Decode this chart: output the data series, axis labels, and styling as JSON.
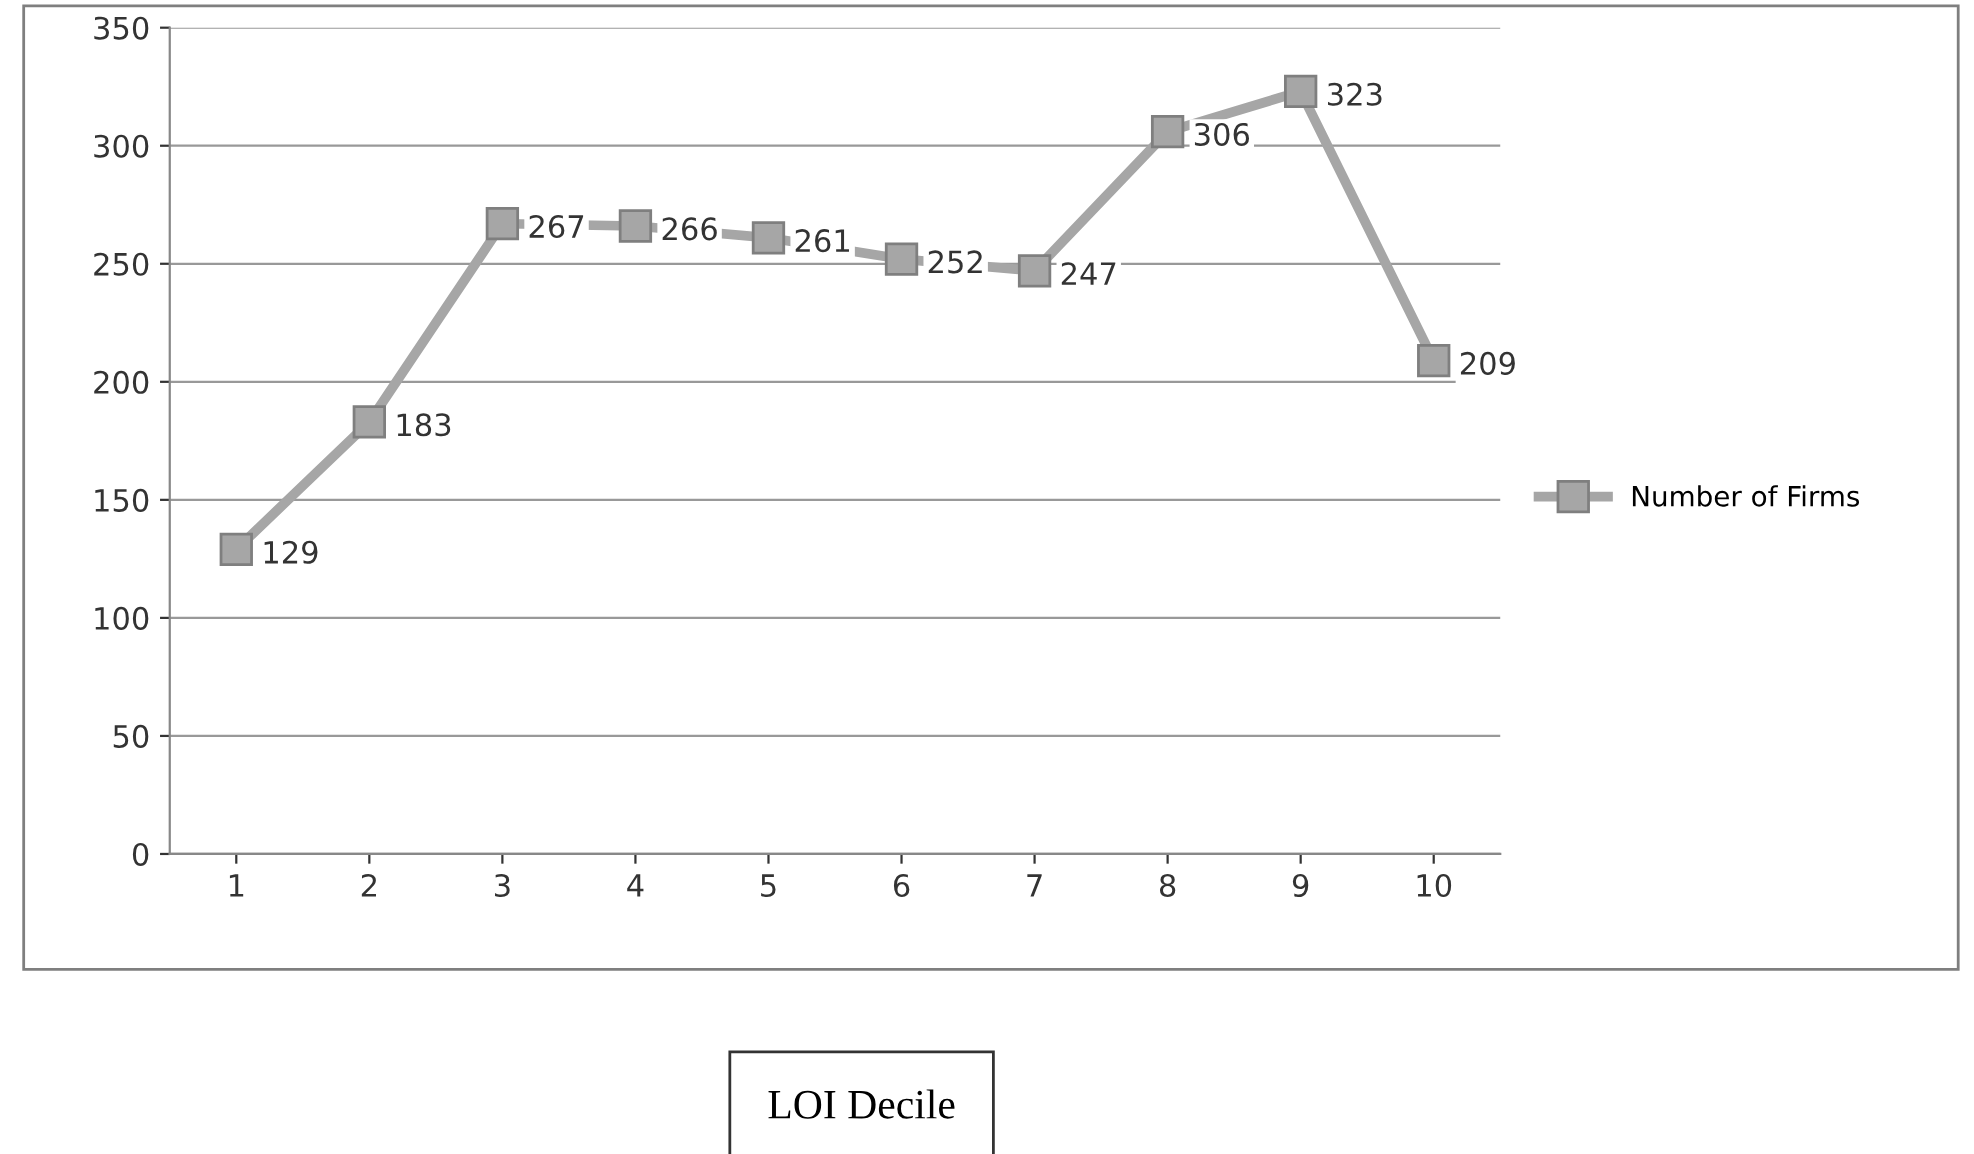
{
  "chart_data": {
    "type": "line",
    "xlabel": "LOI Decile",
    "categories": [
      "1",
      "2",
      "3",
      "4",
      "5",
      "6",
      "7",
      "8",
      "9",
      "10"
    ],
    "series": [
      {
        "name": "Number of Firms",
        "color": "#a6a6a6",
        "values": [
          129,
          183,
          267,
          266,
          261,
          252,
          247,
          306,
          323,
          209
        ]
      }
    ],
    "ylim": [
      0,
      350
    ],
    "yticks": [
      0,
      50,
      100,
      150,
      200,
      250,
      300,
      350
    ],
    "grid": "y",
    "legend": "right",
    "marker": "square",
    "line_style": "solid",
    "data_labels": true
  }
}
